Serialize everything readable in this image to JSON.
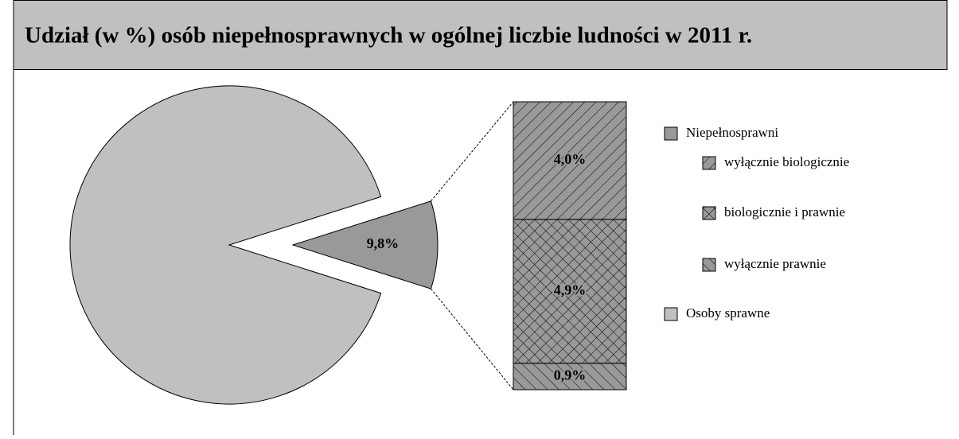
{
  "chart_data": {
    "type": "pie",
    "title": "Udział (w %) osób niepełnosprawnych w ogólnej liczbie ludności w 2011 r.",
    "categories": [
      "Niepełnosprawni",
      "Osoby sprawne"
    ],
    "values": [
      9.8,
      90.2
    ],
    "value_labels": [
      "9,8%",
      null
    ],
    "colors": [
      "#999999",
      "#c0c0c0"
    ],
    "breakdown": {
      "categories": [
        "wyłącznie biologicznie",
        "biologicznie i prawnie",
        "wyłącznie prawnie"
      ],
      "values": [
        4.0,
        4.9,
        0.9
      ],
      "value_labels": [
        "4,0%",
        "4,9%",
        "0,9%"
      ],
      "patterns": [
        "back-diagonal",
        "crosshatch",
        "diagonal"
      ],
      "color": "#999999"
    }
  }
}
